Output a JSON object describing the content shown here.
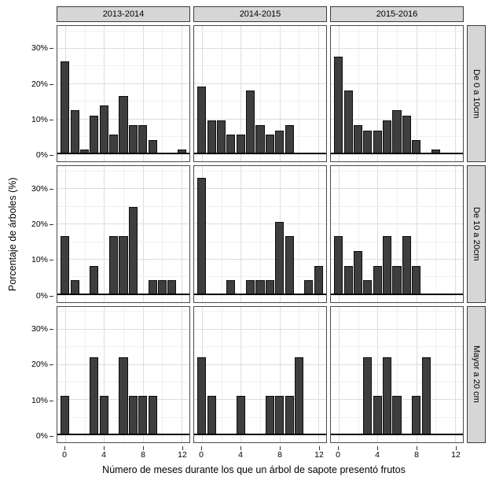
{
  "figure": {
    "xlabel": "Número de meses durante los que un árbol de sapote presentó frutos",
    "ylabel": "Porcentaje de árboles (%)",
    "col_facets": [
      "2013-2014",
      "2014-2015",
      "2015-2016"
    ],
    "row_facets": [
      "De 0 a 10cm",
      "De 10 a 20cm",
      "Mayor a 20 cm"
    ],
    "y_tick_labels": [
      "30%",
      "20%",
      "10%",
      "0%"
    ],
    "y_tick_values": [
      30,
      20,
      10,
      0
    ],
    "x_tick_labels": [
      "0",
      "4",
      "8",
      "12"
    ],
    "x_tick_values": [
      0,
      4,
      8,
      12
    ],
    "colors": {
      "bar_fill": "#3e3e3e",
      "bar_border": "#0d0d0d",
      "strip_bg": "#d6d6d6",
      "panel_border": "#4a4a4a",
      "grid_major": "#dddddd",
      "grid_minor": "#f0f0f0",
      "zero_line": "#000000"
    }
  },
  "chart_data": {
    "type": "bar",
    "title": "",
    "xlabel": "Número de meses durante los que un árbol de sapote presentó frutos",
    "ylabel": "Porcentaje de árboles (%)",
    "facet_columns": [
      "2013-2014",
      "2014-2015",
      "2015-2016"
    ],
    "facet_rows": [
      "De 0 a 10cm",
      "De 10 a 20cm",
      "Mayor a 20 cm"
    ],
    "x": [
      0,
      1,
      2,
      3,
      4,
      5,
      6,
      7,
      8,
      9,
      10,
      11,
      12
    ],
    "xlim": [
      -0.8,
      12.8
    ],
    "ylim": [
      -2,
      36.5
    ],
    "y_unit": "percent",
    "grid": true,
    "legend": "none",
    "panels": [
      {
        "row": "De 0 a 10cm",
        "col": "2013-2014",
        "values": [
          26.4,
          12.5,
          1.4,
          11.1,
          13.9,
          5.6,
          16.7,
          8.3,
          8.3,
          4.2,
          0,
          0,
          1.4
        ]
      },
      {
        "row": "De 0 a 10cm",
        "col": "2014-2015",
        "values": [
          19.4,
          9.7,
          9.7,
          5.6,
          5.6,
          18.1,
          8.3,
          5.6,
          6.9,
          8.3,
          0,
          0,
          0
        ]
      },
      {
        "row": "De 0 a 10cm",
        "col": "2015-2016",
        "values": [
          27.8,
          18.1,
          8.3,
          6.9,
          6.9,
          9.7,
          12.5,
          11.1,
          4.2,
          0,
          1.4,
          0,
          0
        ]
      },
      {
        "row": "De 10 a 20cm",
        "col": "2013-2014",
        "values": [
          16.7,
          4.2,
          0,
          8.3,
          0,
          16.7,
          16.7,
          25,
          0,
          4.2,
          4.2,
          4.2,
          0
        ]
      },
      {
        "row": "De 10 a 20cm",
        "col": "2014-2015",
        "values": [
          33.3,
          0,
          0,
          4.2,
          0,
          4.2,
          4.2,
          4.2,
          20.8,
          16.7,
          0,
          4.2,
          8.3
        ]
      },
      {
        "row": "De 10 a 20cm",
        "col": "2015-2016",
        "values": [
          16.7,
          8.3,
          12.5,
          4.2,
          8.3,
          16.7,
          8.3,
          16.7,
          8.3,
          0,
          0,
          0,
          0
        ]
      },
      {
        "row": "Mayor a 20 cm",
        "col": "2013-2014",
        "values": [
          11.1,
          0,
          0,
          22.2,
          11.1,
          0,
          22.2,
          11.1,
          11.1,
          11.1,
          0,
          0,
          0
        ]
      },
      {
        "row": "Mayor a 20 cm",
        "col": "2014-2015",
        "values": [
          22.2,
          11.1,
          0,
          0,
          11.1,
          0,
          0,
          11.1,
          11.1,
          11.1,
          22.2,
          0,
          0
        ]
      },
      {
        "row": "Mayor a 20 cm",
        "col": "2015-2016",
        "values": [
          0,
          0,
          0,
          22.2,
          11.1,
          22.2,
          11.1,
          0,
          11.1,
          22.2,
          0,
          0,
          0
        ]
      }
    ]
  }
}
